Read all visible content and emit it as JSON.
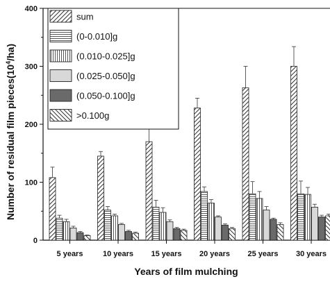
{
  "chart_data": {
    "type": "bar",
    "title": "",
    "xlabel": "Years of film mulching",
    "ylabel": "Number of residual film pieces(10",
    "ylabel_sup": "4",
    "ylabel_tail": "/ha)",
    "categories": [
      "5 years",
      "10 years",
      "15 years",
      "20 years",
      "25 years",
      "30 years"
    ],
    "ylim": [
      0,
      400
    ],
    "yticks": [
      0,
      100,
      200,
      300,
      400
    ],
    "legend_position": "top-left",
    "grid": false,
    "series": [
      {
        "name": "sum",
        "pattern": "diag-up",
        "values": [
          108,
          145,
          170,
          228,
          263,
          300
        ],
        "errors": [
          18,
          8,
          26,
          17,
          37,
          34
        ]
      },
      {
        "name": "(0-0.010]g",
        "pattern": "horizontal",
        "values": [
          38,
          52,
          57,
          84,
          80,
          80
        ],
        "errors": [
          5,
          6,
          12,
          8,
          21,
          22
        ]
      },
      {
        "name": "(0.010-0.025]g",
        "pattern": "vertical",
        "values": [
          32,
          42,
          48,
          64,
          72,
          79
        ],
        "errors": [
          4,
          3,
          8,
          6,
          12,
          12
        ]
      },
      {
        "name": "(0.025-0.050]g",
        "pattern": "light",
        "values": [
          21,
          27,
          32,
          40,
          52,
          57
        ],
        "errors": [
          3,
          2,
          3,
          2,
          6,
          5
        ]
      },
      {
        "name": "(0.050-0.100]g",
        "pattern": "dark",
        "values": [
          13,
          15,
          20,
          26,
          36,
          40
        ],
        "errors": [
          2,
          2,
          2,
          2,
          2,
          3
        ]
      },
      {
        "name": ">0.100g",
        "pattern": "diag-down",
        "values": [
          8,
          12,
          17,
          20,
          27,
          42
        ],
        "errors": [
          1,
          2,
          2,
          2,
          3,
          3
        ]
      }
    ]
  }
}
